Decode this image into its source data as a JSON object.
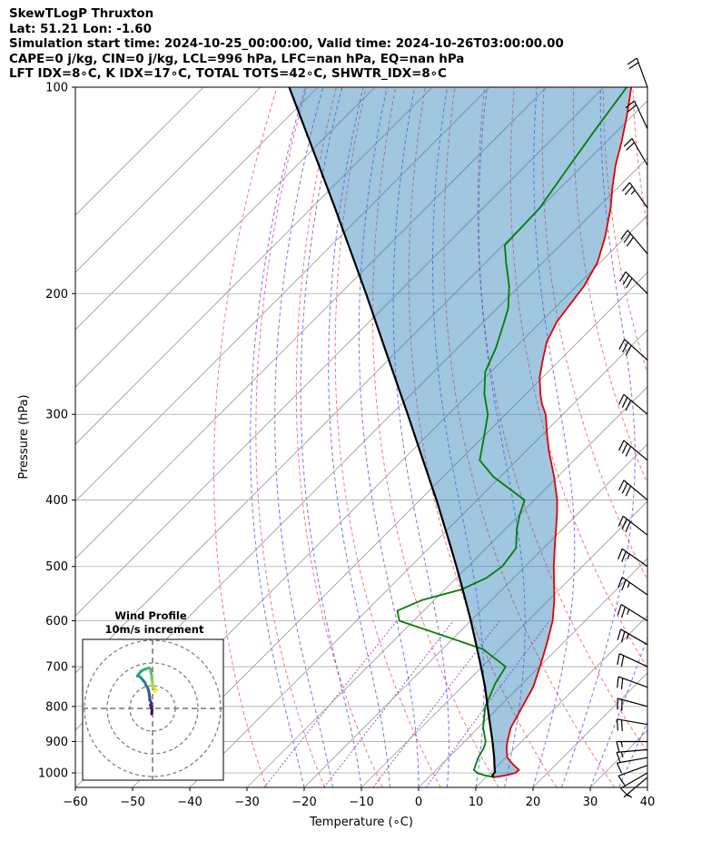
{
  "header": {
    "line1": "SkewTLogP Thruxton",
    "line2": "Lat: 51.21   Lon: -1.60",
    "line3": "Simulation start time: 2024-10-25_00:00:00, Valid time: 2024-10-26T03:00:00.00",
    "line4": "CAPE=0 j/kg, CIN=0 j/kg, LCL=996 hPa, LFC=nan hPa, EQ=nan hPa",
    "line5": "LFT IDX=8∘C, K IDX=17∘C, TOTAL TOTS=42∘C, SHWTR_IDX=8∘C"
  },
  "chart_data": {
    "type": "line",
    "subtype": "skew-t log-p sounding",
    "xlabel": "Temperature (∘C)",
    "ylabel": "Pressure (hPa)",
    "xlim": [
      -60,
      40
    ],
    "ylim": [
      1050,
      100
    ],
    "x_ticks": [
      -60,
      -50,
      -40,
      -30,
      -20,
      -10,
      0,
      10,
      20,
      30,
      40
    ],
    "x_tick_labels": [
      "−60",
      "−50",
      "−40",
      "−30",
      "−20",
      "−10",
      "0",
      "10",
      "20",
      "30",
      "40"
    ],
    "y_ticks": [
      1000,
      900,
      800,
      700,
      600,
      500,
      400,
      300,
      200,
      100
    ],
    "y_tick_labels": [
      "1000",
      "900",
      "800",
      "700",
      "600",
      "500",
      "400",
      "300",
      "200",
      "100"
    ],
    "series": [
      {
        "name": "Temperature",
        "color": "#e00000",
        "points": [
          [
            1015,
            11.3
          ],
          [
            1008,
            13.2
          ],
          [
            1000,
            14.4
          ],
          [
            990,
            14.5
          ],
          [
            975,
            12.8
          ],
          [
            950,
            10.3
          ],
          [
            920,
            8.5
          ],
          [
            900,
            7.5
          ],
          [
            860,
            5.7
          ],
          [
            800,
            4.0
          ],
          [
            750,
            2.5
          ],
          [
            700,
            0.1
          ],
          [
            650,
            -2.6
          ],
          [
            600,
            -5.7
          ],
          [
            560,
            -9.0
          ],
          [
            520,
            -12.9
          ],
          [
            500,
            -15.0
          ],
          [
            460,
            -19.1
          ],
          [
            420,
            -23.5
          ],
          [
            400,
            -26.0
          ],
          [
            370,
            -30.6
          ],
          [
            340,
            -35.9
          ],
          [
            320,
            -39.4
          ],
          [
            300,
            -43.0
          ],
          [
            290,
            -45.4
          ],
          [
            280,
            -47.5
          ],
          [
            265,
            -50.5
          ],
          [
            250,
            -53.0
          ],
          [
            235,
            -55.5
          ],
          [
            220,
            -57.2
          ],
          [
            205,
            -58.1
          ],
          [
            195,
            -58.7
          ],
          [
            180,
            -60.5
          ],
          [
            165,
            -63.7
          ],
          [
            150,
            -67.7
          ],
          [
            140,
            -71.0
          ],
          [
            130,
            -74.3
          ],
          [
            120,
            -77.4
          ],
          [
            110,
            -81.0
          ],
          [
            100,
            -85.2
          ]
        ]
      },
      {
        "name": "Dewpoint",
        "color": "#008000",
        "points": [
          [
            1015,
            11.5
          ],
          [
            1008,
            9.4
          ],
          [
            1000,
            7.7
          ],
          [
            990,
            6.6
          ],
          [
            975,
            6.1
          ],
          [
            950,
            5.2
          ],
          [
            920,
            4.5
          ],
          [
            900,
            3.7
          ],
          [
            860,
            0.9
          ],
          [
            800,
            -2.5
          ],
          [
            770,
            -3.6
          ],
          [
            740,
            -4.8
          ],
          [
            700,
            -5.9
          ],
          [
            660,
            -12.9
          ],
          [
            620,
            -25.7
          ],
          [
            600,
            -32.5
          ],
          [
            580,
            -34.6
          ],
          [
            560,
            -32.2
          ],
          [
            540,
            -27.1
          ],
          [
            520,
            -24.8
          ],
          [
            500,
            -24.0
          ],
          [
            470,
            -24.8
          ],
          [
            440,
            -28.1
          ],
          [
            420,
            -30.0
          ],
          [
            400,
            -31.7
          ],
          [
            370,
            -41.2
          ],
          [
            350,
            -46.5
          ],
          [
            320,
            -50.3
          ],
          [
            300,
            -53.1
          ],
          [
            280,
            -57.3
          ],
          [
            260,
            -61.0
          ],
          [
            240,
            -63.3
          ],
          [
            220,
            -66.4
          ],
          [
            210,
            -68.1
          ],
          [
            195,
            -71.8
          ],
          [
            180,
            -76.5
          ],
          [
            170,
            -79.7
          ],
          [
            150,
            -80.1
          ],
          [
            130,
            -82.3
          ],
          [
            115,
            -84.1
          ],
          [
            100,
            -86.0
          ]
        ]
      },
      {
        "name": "Parcel profile",
        "color": "#000000",
        "points": [
          [
            1015,
            11.3
          ],
          [
            1008,
            10.8
          ],
          [
            996,
            10.6
          ],
          [
            975,
            9.4
          ],
          [
            950,
            8.0
          ],
          [
            900,
            4.9
          ],
          [
            850,
            1.5
          ],
          [
            800,
            -2.1
          ],
          [
            750,
            -5.9
          ],
          [
            700,
            -10.2
          ],
          [
            650,
            -14.9
          ],
          [
            600,
            -20.0
          ],
          [
            550,
            -25.7
          ],
          [
            500,
            -32.0
          ],
          [
            450,
            -39.1
          ],
          [
            400,
            -47.1
          ],
          [
            350,
            -56.4
          ],
          [
            300,
            -67.1
          ],
          [
            250,
            -79.9
          ],
          [
            200,
            -95.5
          ],
          [
            150,
            -115.9
          ],
          [
            100,
            -145.0
          ]
        ]
      }
    ],
    "shaded_region": "area between parcel profile and temperature",
    "wind_barbs": {
      "speed_unit": "knots",
      "note": "one barb per level along the right edge; speeds and directions estimated from glyphs",
      "levels": [
        [
          1015,
          210,
          6
        ],
        [
          1000,
          220,
          8
        ],
        [
          975,
          230,
          10
        ],
        [
          950,
          240,
          12
        ],
        [
          925,
          245,
          14
        ],
        [
          900,
          250,
          16
        ],
        [
          850,
          260,
          18
        ],
        [
          800,
          265,
          20
        ],
        [
          750,
          270,
          22
        ],
        [
          700,
          275,
          22
        ],
        [
          650,
          280,
          24
        ],
        [
          600,
          282,
          24
        ],
        [
          550,
          285,
          26
        ],
        [
          500,
          285,
          26
        ],
        [
          450,
          288,
          28
        ],
        [
          400,
          290,
          28
        ],
        [
          350,
          290,
          30
        ],
        [
          300,
          290,
          30
        ],
        [
          250,
          292,
          30
        ],
        [
          200,
          295,
          30
        ],
        [
          175,
          300,
          28
        ],
        [
          150,
          305,
          24
        ],
        [
          130,
          310,
          20
        ],
        [
          115,
          315,
          20
        ],
        [
          100,
          320,
          18
        ]
      ]
    },
    "hodograph": {
      "title": "Wind Profile",
      "subtitle": "10m/s increment",
      "rings_mps": [
        10,
        20,
        30
      ],
      "colormap": "viridis",
      "points_uv": [
        [
          -0.4,
          -2.4
        ],
        [
          -0.2,
          -0.6
        ],
        [
          -0.6,
          0.2
        ],
        [
          -0.3,
          0.9
        ],
        [
          -1.0,
          1.4
        ],
        [
          -0.5,
          2.3
        ],
        [
          -0.8,
          3.0
        ],
        [
          -1.3,
          3.8
        ],
        [
          -1.2,
          4.8
        ],
        [
          -1.4,
          5.6
        ],
        [
          -1.4,
          6.4
        ],
        [
          -1.7,
          7.4
        ],
        [
          -1.9,
          8.3
        ],
        [
          -2.3,
          9.3
        ],
        [
          -2.9,
          10.1
        ],
        [
          -3.2,
          11.2
        ],
        [
          -4.1,
          12.3
        ],
        [
          -5.1,
          13.5
        ],
        [
          -6.2,
          14.4
        ],
        [
          -6.7,
          14.3
        ],
        [
          -6.0,
          15.2
        ],
        [
          -5.0,
          16.5
        ],
        [
          -3.8,
          17.1
        ],
        [
          -2.1,
          17.7
        ],
        [
          -1.5,
          17.9
        ],
        [
          -0.9,
          17.2
        ],
        [
          -0.7,
          15.7
        ],
        [
          -0.4,
          14.4
        ],
        [
          -0.4,
          13.0
        ],
        [
          -0.1,
          11.8
        ],
        [
          -0.1,
          10.5
        ],
        [
          0.2,
          9.3
        ],
        [
          1.0,
          8.7
        ],
        [
          1.3,
          8.2
        ],
        [
          0.8,
          7.8
        ],
        [
          1.2,
          7.7
        ],
        [
          1.9,
          8.0
        ]
      ]
    }
  }
}
